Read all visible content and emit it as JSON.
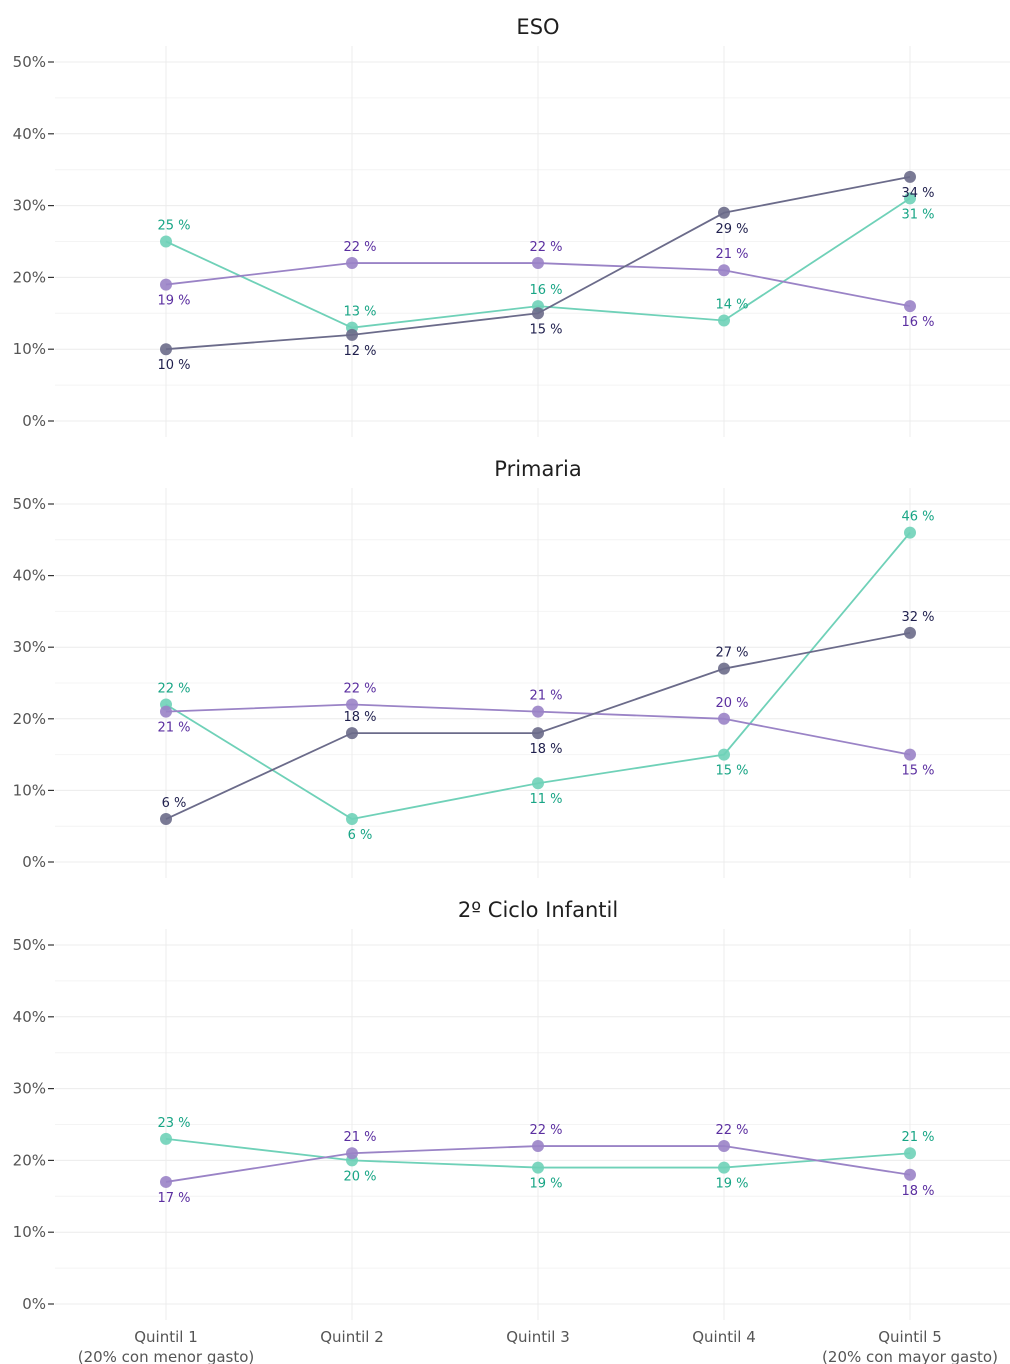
{
  "chart_data": {
    "type": "line",
    "categories": [
      [
        "Quintil 1",
        "(20% con menor gasto)"
      ],
      [
        "Quintil 2"
      ],
      [
        "Quintil 3"
      ],
      [
        "Quintil 4"
      ],
      [
        "Quintil 5",
        "(20% con mayor gasto)"
      ]
    ],
    "ylim": [
      0,
      50
    ],
    "yticks": [
      0,
      10,
      20,
      30,
      40,
      50
    ],
    "ytick_labels": [
      "0%",
      "10%",
      "20%",
      "30%",
      "40%",
      "50%"
    ],
    "grid": true,
    "colors": {
      "dark": "#6b6b8a",
      "purple": "#9a83c6",
      "teal": "#6fd1b8",
      "dark_text": "#1f1f4d",
      "purple_text": "#5b2fa0",
      "teal_text": "#18a585"
    },
    "panels": [
      {
        "title": "ESO",
        "series": [
          {
            "color": "teal",
            "values": [
              25,
              13,
              16,
              14,
              31
            ],
            "labels": [
              "25 %",
              "13 %",
              "16 %",
              "14 %",
              "31 %"
            ],
            "label_pos": [
              "above",
              "above",
              "above",
              "above",
              "below"
            ]
          },
          {
            "color": "purple",
            "values": [
              19,
              22,
              22,
              21,
              16
            ],
            "labels": [
              "19 %",
              "22 %",
              "22 %",
              "21 %",
              "16 %"
            ],
            "label_pos": [
              "below",
              "above",
              "above",
              "above",
              "below"
            ]
          },
          {
            "color": "dark",
            "values": [
              10,
              12,
              15,
              29,
              34
            ],
            "labels": [
              "10 %",
              "12 %",
              "15 %",
              "29 %",
              "34 %"
            ],
            "label_pos": [
              "below",
              "below",
              "below",
              "below",
              "below"
            ]
          }
        ]
      },
      {
        "title": "Primaria",
        "series": [
          {
            "color": "teal",
            "values": [
              22,
              6,
              11,
              15,
              46
            ],
            "labels": [
              "22 %",
              "6 %",
              "11 %",
              "15 %",
              "46 %"
            ],
            "label_pos": [
              "above",
              "below",
              "below",
              "below",
              "above"
            ]
          },
          {
            "color": "purple",
            "values": [
              21,
              22,
              21,
              20,
              15
            ],
            "labels": [
              "21 %",
              "22 %",
              "21 %",
              "20 %",
              "15 %"
            ],
            "label_pos": [
              "below",
              "above",
              "above",
              "above",
              "below"
            ]
          },
          {
            "color": "dark",
            "values": [
              6,
              18,
              18,
              27,
              32
            ],
            "labels": [
              "6 %",
              "18 %",
              "18 %",
              "27 %",
              "32 %"
            ],
            "label_pos": [
              "above",
              "above",
              "below",
              "above",
              "above"
            ]
          }
        ]
      },
      {
        "title": "2º Ciclo Infantil",
        "series": [
          {
            "color": "teal",
            "values": [
              23,
              20,
              19,
              19,
              21
            ],
            "labels": [
              "23 %",
              "20 %",
              "19 %",
              "19 %",
              "21 %"
            ],
            "label_pos": [
              "above",
              "below",
              "below",
              "below",
              "above"
            ]
          },
          {
            "color": "purple",
            "values": [
              17,
              21,
              22,
              22,
              18
            ],
            "labels": [
              "17 %",
              "21 %",
              "22 %",
              "22 %",
              "18 %"
            ],
            "label_pos": [
              "below",
              "above",
              "above",
              "above",
              "below"
            ]
          }
        ]
      }
    ]
  }
}
